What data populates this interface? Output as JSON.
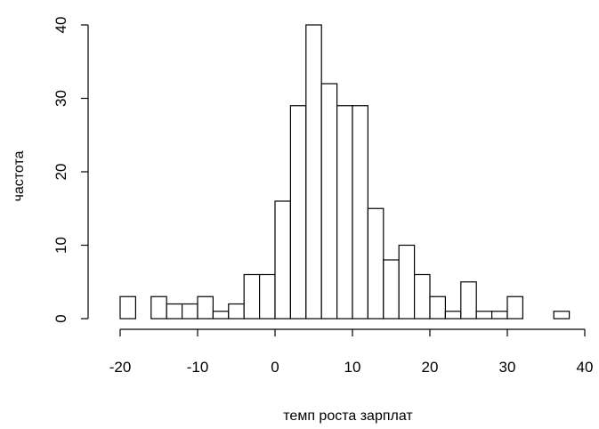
{
  "chart_data": {
    "type": "bar",
    "subtype": "histogram",
    "title": "",
    "xlabel": "темп роста зарплат",
    "ylabel": "частота",
    "bin_width": 2,
    "bin_start": -20,
    "bins": [
      {
        "x0": -20,
        "x1": -18,
        "count": 3
      },
      {
        "x0": -18,
        "x1": -16,
        "count": 0
      },
      {
        "x0": -16,
        "x1": -14,
        "count": 3
      },
      {
        "x0": -14,
        "x1": -12,
        "count": 2
      },
      {
        "x0": -12,
        "x1": -10,
        "count": 2
      },
      {
        "x0": -10,
        "x1": -8,
        "count": 3
      },
      {
        "x0": -8,
        "x1": -6,
        "count": 1
      },
      {
        "x0": -6,
        "x1": -4,
        "count": 2
      },
      {
        "x0": -4,
        "x1": -2,
        "count": 6
      },
      {
        "x0": -2,
        "x1": 0,
        "count": 6
      },
      {
        "x0": 0,
        "x1": 2,
        "count": 16
      },
      {
        "x0": 2,
        "x1": 4,
        "count": 29
      },
      {
        "x0": 4,
        "x1": 6,
        "count": 40
      },
      {
        "x0": 6,
        "x1": 8,
        "count": 32
      },
      {
        "x0": 8,
        "x1": 10,
        "count": 29
      },
      {
        "x0": 10,
        "x1": 12,
        "count": 29
      },
      {
        "x0": 12,
        "x1": 14,
        "count": 15
      },
      {
        "x0": 14,
        "x1": 16,
        "count": 8
      },
      {
        "x0": 16,
        "x1": 18,
        "count": 10
      },
      {
        "x0": 18,
        "x1": 20,
        "count": 6
      },
      {
        "x0": 20,
        "x1": 22,
        "count": 3
      },
      {
        "x0": 22,
        "x1": 24,
        "count": 1
      },
      {
        "x0": 24,
        "x1": 26,
        "count": 5
      },
      {
        "x0": 26,
        "x1": 28,
        "count": 1
      },
      {
        "x0": 28,
        "x1": 30,
        "count": 1
      },
      {
        "x0": 30,
        "x1": 32,
        "count": 3
      },
      {
        "x0": 32,
        "x1": 34,
        "count": 0
      },
      {
        "x0": 34,
        "x1": 36,
        "count": 0
      },
      {
        "x0": 36,
        "x1": 38,
        "count": 1
      }
    ],
    "xlim": [
      -20,
      40
    ],
    "ylim": [
      0,
      40
    ],
    "xticks": [
      "-20",
      "-10",
      "0",
      "10",
      "20",
      "30",
      "40"
    ],
    "yticks": [
      "0",
      "10",
      "20",
      "30",
      "40"
    ],
    "grid": false,
    "legend": "none",
    "colors": {
      "bar_fill": "#ffffff",
      "bar_stroke": "#000000",
      "axis": "#000000"
    }
  }
}
